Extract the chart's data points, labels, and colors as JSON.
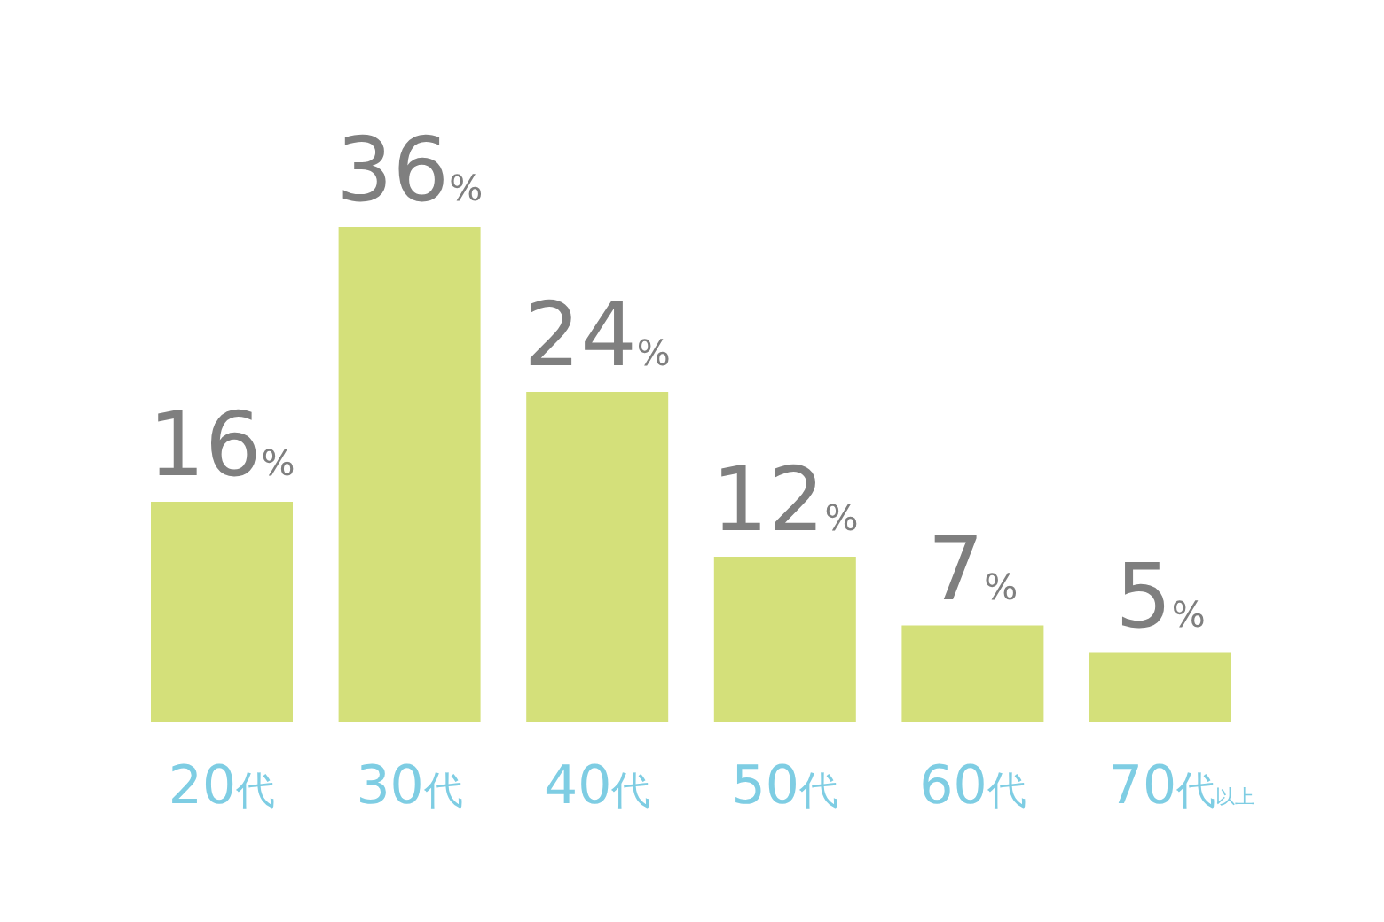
{
  "chart_data": {
    "type": "bar",
    "categories": [
      "20代",
      "30代",
      "40代",
      "50代",
      "60代",
      "70代以上"
    ],
    "values": [
      16,
      36,
      24,
      12,
      7,
      5
    ],
    "value_labels": [
      "16%",
      "36%",
      "24%",
      "12%",
      "7%",
      "5%"
    ],
    "color": "#d4e07a"
  }
}
